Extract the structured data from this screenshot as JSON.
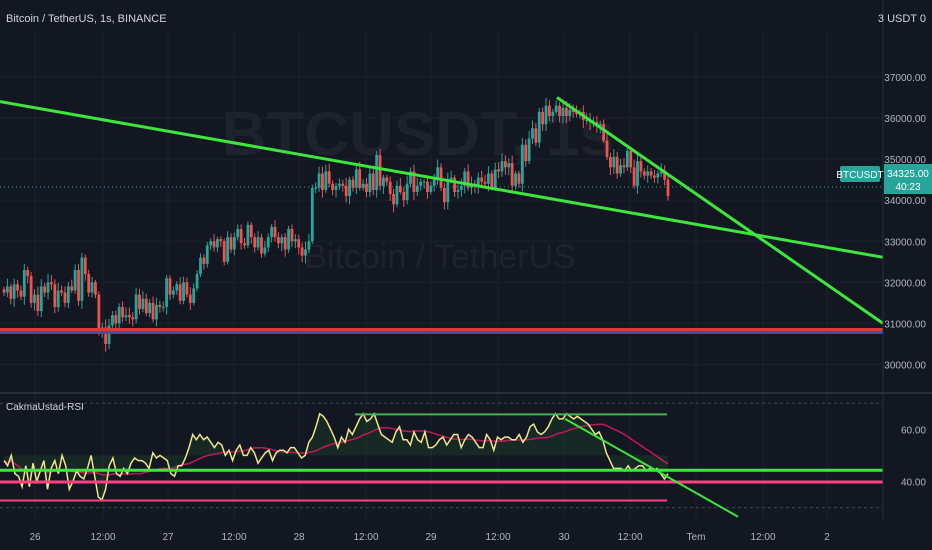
{
  "header": {
    "title": "Bitcoin / TetherUS, 1s, BINANCE",
    "currency": "3 USDT 0"
  },
  "watermark": {
    "symbol": "BTCUSDT, 1s",
    "name": "Bitcoin / TetherUS"
  },
  "price_label": {
    "symbol": "BTCUSDT",
    "price": "34325.00",
    "countdown": "40:23"
  },
  "rsi_panel": {
    "name": "CakmaUstad-RSI"
  },
  "colors": {
    "background": "#131722",
    "up_candle": "#26a69a",
    "down_candle": "#ef5350",
    "trendline": "#3ce63c",
    "rsi_line": "#f0e68c",
    "horizontal_red": "#e53935",
    "horizontal_blue": "#3f51b5",
    "pink": "#ff4081",
    "magenta": "#c2185b"
  },
  "chart_data": [
    {
      "type": "candlestick",
      "title": "Bitcoin / TetherUS, 1s, BINANCE",
      "x_tick_labels": [
        "26",
        "12:00",
        "27",
        "12:00",
        "28",
        "12:00",
        "29",
        "12:00",
        "30",
        "12:00",
        "Tem",
        "12:00",
        "2"
      ],
      "y_tick_labels": [
        "37000.00",
        "36000.00",
        "35000.00",
        "34000.00",
        "33000.00",
        "32000.00",
        "31000.00",
        "30000.00"
      ],
      "ylim": [
        29500,
        37900
      ],
      "close_path": [
        31750,
        31900,
        31600,
        31950,
        31800,
        31650,
        32300,
        32150,
        31500,
        31700,
        31300,
        31900,
        31750,
        32000,
        31950,
        31400,
        31800,
        31750,
        31500,
        31900,
        31800,
        32300,
        31550,
        32600,
        32200,
        31750,
        32000,
        31700,
        30850,
        30900,
        30500,
        30950,
        31200,
        31000,
        31400,
        31150,
        31200,
        31150,
        31100,
        31700,
        31350,
        31600,
        31250,
        31500,
        31100,
        31450,
        31400,
        31400,
        32100,
        31700,
        31800,
        31950,
        31550,
        32000,
        31700,
        31500,
        31850,
        32200,
        32600,
        32450,
        32900,
        33000,
        32850,
        33050,
        33000,
        32500,
        33100,
        32800,
        33100,
        33300,
        32950,
        32900,
        33400,
        33100,
        32850,
        33100,
        32700,
        32850,
        33100,
        33350,
        33100,
        32950,
        33100,
        32800,
        33300,
        33000,
        33050,
        32850,
        32650,
        32800,
        33000,
        34300,
        34300,
        34650,
        34250,
        34700,
        34400,
        34250,
        34350,
        34400,
        34350,
        34100,
        34500,
        34300,
        34750,
        34300,
        34400,
        34200,
        34650,
        34250,
        35100,
        34350,
        34550,
        34450,
        34150,
        33900,
        34350,
        34200,
        34000,
        34400,
        34700,
        34200,
        34350,
        34450,
        34450,
        34200,
        34350,
        34550,
        34800,
        34300,
        33950,
        34500,
        34550,
        34200,
        34250,
        34350,
        34700,
        34300,
        34400,
        34350,
        34550,
        34450,
        34400,
        34650,
        34300,
        34750,
        34700,
        34950,
        34800,
        34900,
        34350,
        34650,
        34400,
        35350,
        34950,
        35500,
        35750,
        35400,
        36150,
        35850,
        36300,
        36050,
        36150,
        36300,
        36050,
        36250,
        36050,
        36200,
        36150,
        36100,
        36150,
        35950,
        35950,
        35900,
        35900,
        35800,
        35850,
        35450,
        35050,
        34800,
        35050,
        34650,
        34850,
        34800,
        35200,
        34800,
        34350,
        34950,
        34700,
        34600,
        34700,
        34600,
        34550,
        34650,
        34700,
        34500,
        34100
      ],
      "last_price": 34325.0,
      "horizontal_levels": [
        {
          "value": 30850,
          "color": "#e53935"
        },
        {
          "value": 30780,
          "color": "#3f51b5"
        }
      ],
      "trendlines": [
        {
          "from": [
            "26 00:00",
            36400
          ],
          "to": [
            "Tem 12:00",
            33150
          ],
          "color": "#3ce63c"
        },
        {
          "from": [
            "30 00:00",
            36500
          ],
          "to": [
            "Tem 22:00",
            31000
          ],
          "color": "#3ce63c"
        }
      ]
    },
    {
      "type": "line",
      "title": "CakmaUstad-RSI",
      "y_tick_labels": [
        "60.00",
        "40.00"
      ],
      "ylim": [
        26,
        72
      ],
      "rsi": [
        48,
        46,
        50,
        43,
        42,
        38,
        46,
        38,
        47,
        40,
        44,
        48,
        37,
        45,
        48,
        43,
        50,
        46,
        37,
        40,
        44,
        42,
        41,
        45,
        50,
        42,
        34,
        33,
        37,
        46,
        49,
        43,
        42,
        45,
        43,
        47,
        49,
        48,
        48,
        47,
        45,
        51,
        49,
        50,
        49,
        48,
        43,
        42,
        46,
        46,
        49,
        53,
        58,
        56,
        58,
        56,
        57,
        55,
        53,
        55,
        54,
        50,
        52,
        48,
        52,
        54,
        50,
        50,
        53,
        51,
        47,
        49,
        51,
        52,
        48,
        51,
        52,
        52,
        51,
        53,
        53,
        51,
        49,
        50,
        55,
        57,
        61,
        66,
        65,
        63,
        60,
        57,
        53,
        57,
        55,
        60,
        58,
        61,
        64,
        66,
        63,
        64,
        66,
        62,
        58,
        57,
        56,
        55,
        59,
        61,
        56,
        56,
        54,
        59,
        56,
        55,
        59,
        53,
        53,
        54,
        56,
        57,
        54,
        56,
        58,
        58,
        53,
        56,
        58,
        57,
        55,
        53,
        53,
        58,
        56,
        52,
        57,
        56,
        57,
        57,
        56,
        56,
        58,
        55,
        57,
        61,
        62,
        59,
        58,
        59,
        61,
        64,
        66,
        64,
        64,
        66,
        65,
        64,
        65,
        64,
        63,
        62,
        60,
        58,
        59,
        56,
        51,
        48,
        45,
        45,
        45,
        44,
        46,
        44,
        45,
        46,
        46,
        44,
        45,
        44,
        45,
        43,
        41,
        43
      ],
      "levels": [
        {
          "value": 65.7,
          "color": "#4caf50"
        },
        {
          "value": 44.3,
          "color": "#3ce63c"
        },
        {
          "value": 39.8,
          "color": "#ff4081"
        },
        {
          "value": 32.7,
          "color": "#ff4081"
        }
      ]
    }
  ]
}
